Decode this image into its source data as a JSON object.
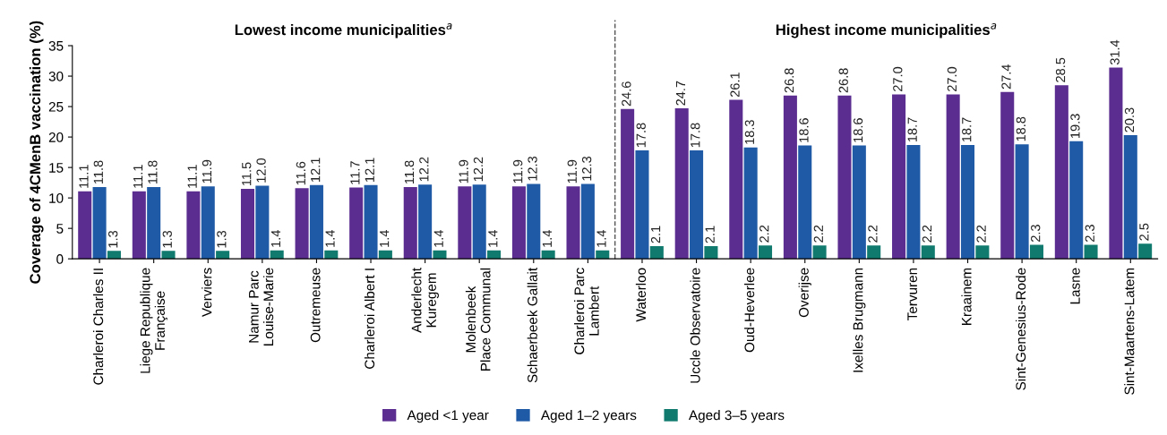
{
  "chart_data": {
    "type": "bar",
    "ylabel": "Coverage of 4CMenB vaccination (%)",
    "categories": [
      "Charleroi Charles II",
      "Liege Republique\nFrançaise",
      "Verviers",
      "Namur Parc\nLouise-Marie",
      "Outremeuse",
      "Charleroi Albert I",
      "Anderlecht\nKuregem",
      "Molenbeek\nPlace Communal",
      "Schaerbeek Gallait",
      "Charleroi Parc\nLambert",
      "Waterloo",
      "Uccle Observatoire",
      "Oud-Heverlee",
      "Overijse",
      "Ixelles Brugmann",
      "Tervuren",
      "Kraainem",
      "Sint-Genesius-Rode",
      "Lasne",
      "Sint-Maartens-Latem"
    ],
    "series": [
      {
        "name": "Aged <1 year",
        "color": "#5b2d91",
        "values": [
          11.1,
          11.1,
          11.1,
          11.5,
          11.6,
          11.7,
          11.8,
          11.9,
          11.9,
          11.9,
          24.6,
          24.7,
          26.1,
          26.8,
          26.8,
          27.0,
          27.0,
          27.4,
          28.5,
          31.4
        ],
        "value_labels": [
          "11.1",
          "11.1",
          "11.1",
          "11.5",
          "11.6",
          "11.7",
          "11.8",
          "11.9",
          "11.9",
          "11.9",
          "24.6",
          "24.7",
          "26.1",
          "26.8",
          "26.8",
          "27.0",
          "27.0",
          "27.4",
          "28.5",
          "31.4"
        ]
      },
      {
        "name": "Aged 1–2 years",
        "color": "#1f5aa6",
        "values": [
          11.8,
          11.8,
          11.9,
          12.0,
          12.1,
          12.1,
          12.2,
          12.2,
          12.3,
          12.3,
          17.8,
          17.8,
          18.3,
          18.6,
          18.6,
          18.7,
          18.7,
          18.8,
          19.3,
          20.3
        ],
        "value_labels": [
          "11.8",
          "11.8",
          "11.9",
          "12.0",
          "12.1",
          "12.1",
          "12.2",
          "12.2",
          "12.3",
          "12.3",
          "17.8",
          "17.8",
          "18.3",
          "18.6",
          "18.6",
          "18.7",
          "18.7",
          "18.8",
          "19.3",
          "20.3"
        ]
      },
      {
        "name": "Aged 3–5 years",
        "color": "#107a6e",
        "values": [
          1.3,
          1.3,
          1.3,
          1.4,
          1.4,
          1.4,
          1.4,
          1.4,
          1.4,
          1.4,
          2.1,
          2.1,
          2.2,
          2.2,
          2.2,
          2.2,
          2.2,
          2.3,
          2.3,
          2.5
        ],
        "value_labels": [
          "1.3",
          "1.3",
          "1.3",
          "1.4",
          "1.4",
          "1.4",
          "1.4",
          "1.4",
          "1.4",
          "1.4",
          "2.1",
          "2.1",
          "2.2",
          "2.2",
          "2.2",
          "2.2",
          "2.2",
          "2.3",
          "2.3",
          "2.5"
        ]
      }
    ],
    "ylim": [
      0,
      35
    ],
    "yticks": [
      0,
      5,
      10,
      15,
      20,
      25,
      30,
      35
    ],
    "annotations": [
      "Lowest income municipalities$^{a}$",
      "Highest income municipalities$^{a}$"
    ],
    "grid": false,
    "legend": "bottom"
  }
}
